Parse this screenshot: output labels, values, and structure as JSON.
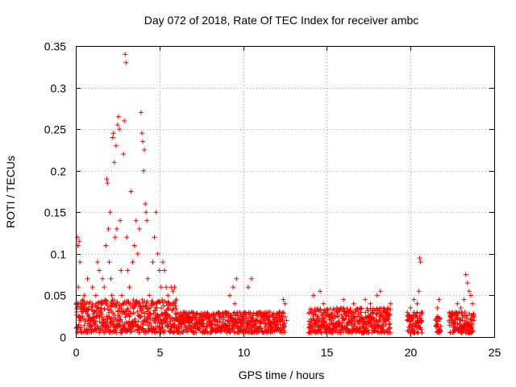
{
  "chart_data": {
    "type": "scatter",
    "title": "Day 072 of 2018, Rate Of TEC Index for receiver ambc",
    "xlabel": "GPS time / hours",
    "ylabel": "ROTI / TECUs",
    "xlim": [
      0,
      25
    ],
    "ylim": [
      0,
      0.35
    ],
    "xticks": [
      "0",
      "5",
      "10",
      "15",
      "20",
      "25"
    ],
    "yticks": [
      "0",
      "0.05",
      "0.1",
      "0.15",
      "0.2",
      "0.25",
      "0.3",
      "0.35"
    ],
    "grid": true,
    "marker": "+",
    "color": "#ff0000",
    "series": [
      {
        "points": [
          [
            0.05,
            0.03
          ],
          [
            0.1,
            0.12
          ],
          [
            0.12,
            0.11
          ],
          [
            0.15,
            0.06
          ],
          [
            0.2,
            0.115
          ],
          [
            0.25,
            0.09
          ],
          [
            0.3,
            0.02
          ],
          [
            0.35,
            0.04
          ],
          [
            0.4,
            0.025
          ],
          [
            0.5,
            0.05
          ],
          [
            0.6,
            0.03
          ],
          [
            0.7,
            0.07
          ],
          [
            0.8,
            0.04
          ],
          [
            0.9,
            0.02
          ],
          [
            1.0,
            0.06
          ],
          [
            1.1,
            0.03
          ],
          [
            1.2,
            0.05
          ],
          [
            1.3,
            0.09
          ],
          [
            1.4,
            0.08
          ],
          [
            1.5,
            0.04
          ],
          [
            1.6,
            0.07
          ],
          [
            1.7,
            0.06
          ],
          [
            1.8,
            0.11
          ],
          [
            1.85,
            0.19
          ],
          [
            1.9,
            0.185
          ],
          [
            1.95,
            0.13
          ],
          [
            2.0,
            0.09
          ],
          [
            2.05,
            0.15
          ],
          [
            2.1,
            0.07
          ],
          [
            2.15,
            0.05
          ],
          [
            2.2,
            0.24
          ],
          [
            2.25,
            0.245
          ],
          [
            2.3,
            0.21
          ],
          [
            2.35,
            0.12
          ],
          [
            2.4,
            0.23
          ],
          [
            2.45,
            0.13
          ],
          [
            2.5,
            0.255
          ],
          [
            2.55,
            0.265
          ],
          [
            2.6,
            0.25
          ],
          [
            2.65,
            0.14
          ],
          [
            2.7,
            0.08
          ],
          [
            2.75,
            0.05
          ],
          [
            2.8,
            0.03
          ],
          [
            2.85,
            0.22
          ],
          [
            2.9,
            0.26
          ],
          [
            2.95,
            0.34
          ],
          [
            3.0,
            0.33
          ],
          [
            3.05,
            0.12
          ],
          [
            3.1,
            0.08
          ],
          [
            3.2,
            0.06
          ],
          [
            3.3,
            0.175
          ],
          [
            3.4,
            0.09
          ],
          [
            3.5,
            0.11
          ],
          [
            3.6,
            0.14
          ],
          [
            3.7,
            0.1
          ],
          [
            3.8,
            0.13
          ],
          [
            3.9,
            0.27
          ],
          [
            3.95,
            0.245
          ],
          [
            4.0,
            0.235
          ],
          [
            4.05,
            0.2
          ],
          [
            4.1,
            0.225
          ],
          [
            4.15,
            0.16
          ],
          [
            4.2,
            0.15
          ],
          [
            4.25,
            0.14
          ],
          [
            4.3,
            0.07
          ],
          [
            4.4,
            0.05
          ],
          [
            4.5,
            0.04
          ],
          [
            4.6,
            0.09
          ],
          [
            4.7,
            0.12
          ],
          [
            4.8,
            0.15
          ],
          [
            4.9,
            0.1
          ],
          [
            5.0,
            0.08
          ],
          [
            5.1,
            0.06
          ],
          [
            5.2,
            0.09
          ],
          [
            5.3,
            0.08
          ],
          [
            5.4,
            0.06
          ],
          [
            5.5,
            0.05
          ],
          [
            5.6,
            0.04
          ],
          [
            5.7,
            0.06
          ],
          [
            5.8,
            0.055
          ],
          [
            5.9,
            0.06
          ],
          [
            6.0,
            0.045
          ],
          [
            6.2,
            0.02
          ],
          [
            6.5,
            0.03
          ],
          [
            6.8,
            0.025
          ],
          [
            7.0,
            0.03
          ],
          [
            7.3,
            0.015
          ],
          [
            7.6,
            0.02
          ],
          [
            8.0,
            0.015
          ],
          [
            8.3,
            0.02
          ],
          [
            8.6,
            0.025
          ],
          [
            9.0,
            0.03
          ],
          [
            9.2,
            0.05
          ],
          [
            9.4,
            0.06
          ],
          [
            9.5,
            0.04
          ],
          [
            9.6,
            0.07
          ],
          [
            9.8,
            0.03
          ],
          [
            10.0,
            0.025
          ],
          [
            10.3,
            0.06
          ],
          [
            10.5,
            0.07
          ],
          [
            10.7,
            0.02
          ],
          [
            11.0,
            0.03
          ],
          [
            11.3,
            0.02
          ],
          [
            11.6,
            0.03
          ],
          [
            12.0,
            0.015
          ],
          [
            12.2,
            0.03
          ],
          [
            12.4,
            0.045
          ],
          [
            12.5,
            0.04
          ],
          [
            12.6,
            0.02
          ],
          [
            14.0,
            0.03
          ],
          [
            14.2,
            0.05
          ],
          [
            14.4,
            0.02
          ],
          [
            14.6,
            0.055
          ],
          [
            14.8,
            0.04
          ],
          [
            15.0,
            0.03
          ],
          [
            15.3,
            0.02
          ],
          [
            15.6,
            0.035
          ],
          [
            16.0,
            0.045
          ],
          [
            16.3,
            0.03
          ],
          [
            16.6,
            0.04
          ],
          [
            17.0,
            0.035
          ],
          [
            17.3,
            0.045
          ],
          [
            17.6,
            0.04
          ],
          [
            18.0,
            0.05
          ],
          [
            18.2,
            0.055
          ],
          [
            18.4,
            0.035
          ],
          [
            18.6,
            0.03
          ],
          [
            18.8,
            0.04
          ],
          [
            19.8,
            0.02
          ],
          [
            20.0,
            0.035
          ],
          [
            20.2,
            0.045
          ],
          [
            20.4,
            0.04
          ],
          [
            20.5,
            0.055
          ],
          [
            20.55,
            0.095
          ],
          [
            20.6,
            0.09
          ],
          [
            20.7,
            0.03
          ],
          [
            21.5,
            0.02
          ],
          [
            21.6,
            0.035
          ],
          [
            21.7,
            0.045
          ],
          [
            22.3,
            0.02
          ],
          [
            22.5,
            0.03
          ],
          [
            22.8,
            0.04
          ],
          [
            23.0,
            0.035
          ],
          [
            23.2,
            0.045
          ],
          [
            23.3,
            0.075
          ],
          [
            23.4,
            0.065
          ],
          [
            23.5,
            0.055
          ],
          [
            23.6,
            0.05
          ],
          [
            23.7,
            0.04
          ]
        ],
        "bands": [
          {
            "x": [
              0.0,
              6.0
            ],
            "y": [
              0.005,
              0.045
            ]
          },
          {
            "x": [
              6.0,
              12.5
            ],
            "y": [
              0.005,
              0.03
            ]
          },
          {
            "x": [
              13.9,
              18.8
            ],
            "y": [
              0.005,
              0.035
            ]
          },
          {
            "x": [
              19.8,
              20.7
            ],
            "y": [
              0.005,
              0.03
            ]
          },
          {
            "x": [
              21.5,
              21.8
            ],
            "y": [
              0.005,
              0.025
            ]
          },
          {
            "x": [
              22.3,
              23.8
            ],
            "y": [
              0.005,
              0.03
            ]
          }
        ]
      }
    ]
  }
}
